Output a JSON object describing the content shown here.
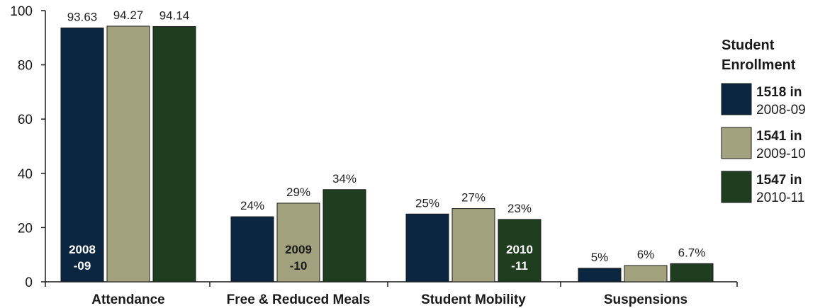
{
  "chart_data": {
    "type": "bar",
    "title": "",
    "xlabel": "",
    "ylabel": "",
    "ylim": [
      0,
      100
    ],
    "yticks": [
      "0",
      "20",
      "40",
      "60",
      "80",
      "100"
    ],
    "grid": false,
    "legend_position": "right",
    "categories": [
      "Attendance",
      "Free & Reduced Meals",
      "Student Mobility",
      "Suspensions"
    ],
    "series": [
      {
        "year_label": "2008-09",
        "color": "#0b2640",
        "values": [
          93.63,
          24,
          25,
          5
        ],
        "labels": [
          "93.63",
          "24%",
          "25%",
          "5%"
        ]
      },
      {
        "year_label": "2009-10",
        "color": "#a2a27e",
        "values": [
          94.27,
          29,
          27,
          6
        ],
        "labels": [
          "94.27",
          "29%",
          "27%",
          "6%"
        ]
      },
      {
        "year_label": "2010-11",
        "color": "#1f3d1f",
        "values": [
          94.14,
          34,
          23,
          6.7
        ],
        "labels": [
          "94.14",
          "34%",
          "23%",
          "6.7%"
        ]
      }
    ],
    "in_bar_labels": [
      {
        "category": 0,
        "series": 0,
        "line1": "2008",
        "line2": "-09",
        "color": "#ffffff"
      },
      {
        "category": 1,
        "series": 1,
        "line1": "2009",
        "line2": "-10",
        "color": "#1a1a1a"
      },
      {
        "category": 2,
        "series": 2,
        "line1": "2010",
        "line2": "-11",
        "color": "#ffffff"
      }
    ],
    "legend": {
      "title_line1": "Student",
      "title_line2": "Enrollment",
      "items": [
        {
          "bold": "1518 in",
          "text": "2008-09",
          "color": "#0b2640"
        },
        {
          "bold": "1541 in",
          "text": "2009-10",
          "color": "#a2a27e"
        },
        {
          "bold": "1547 in",
          "text": "2010-11",
          "color": "#1f3d1f"
        }
      ]
    }
  }
}
